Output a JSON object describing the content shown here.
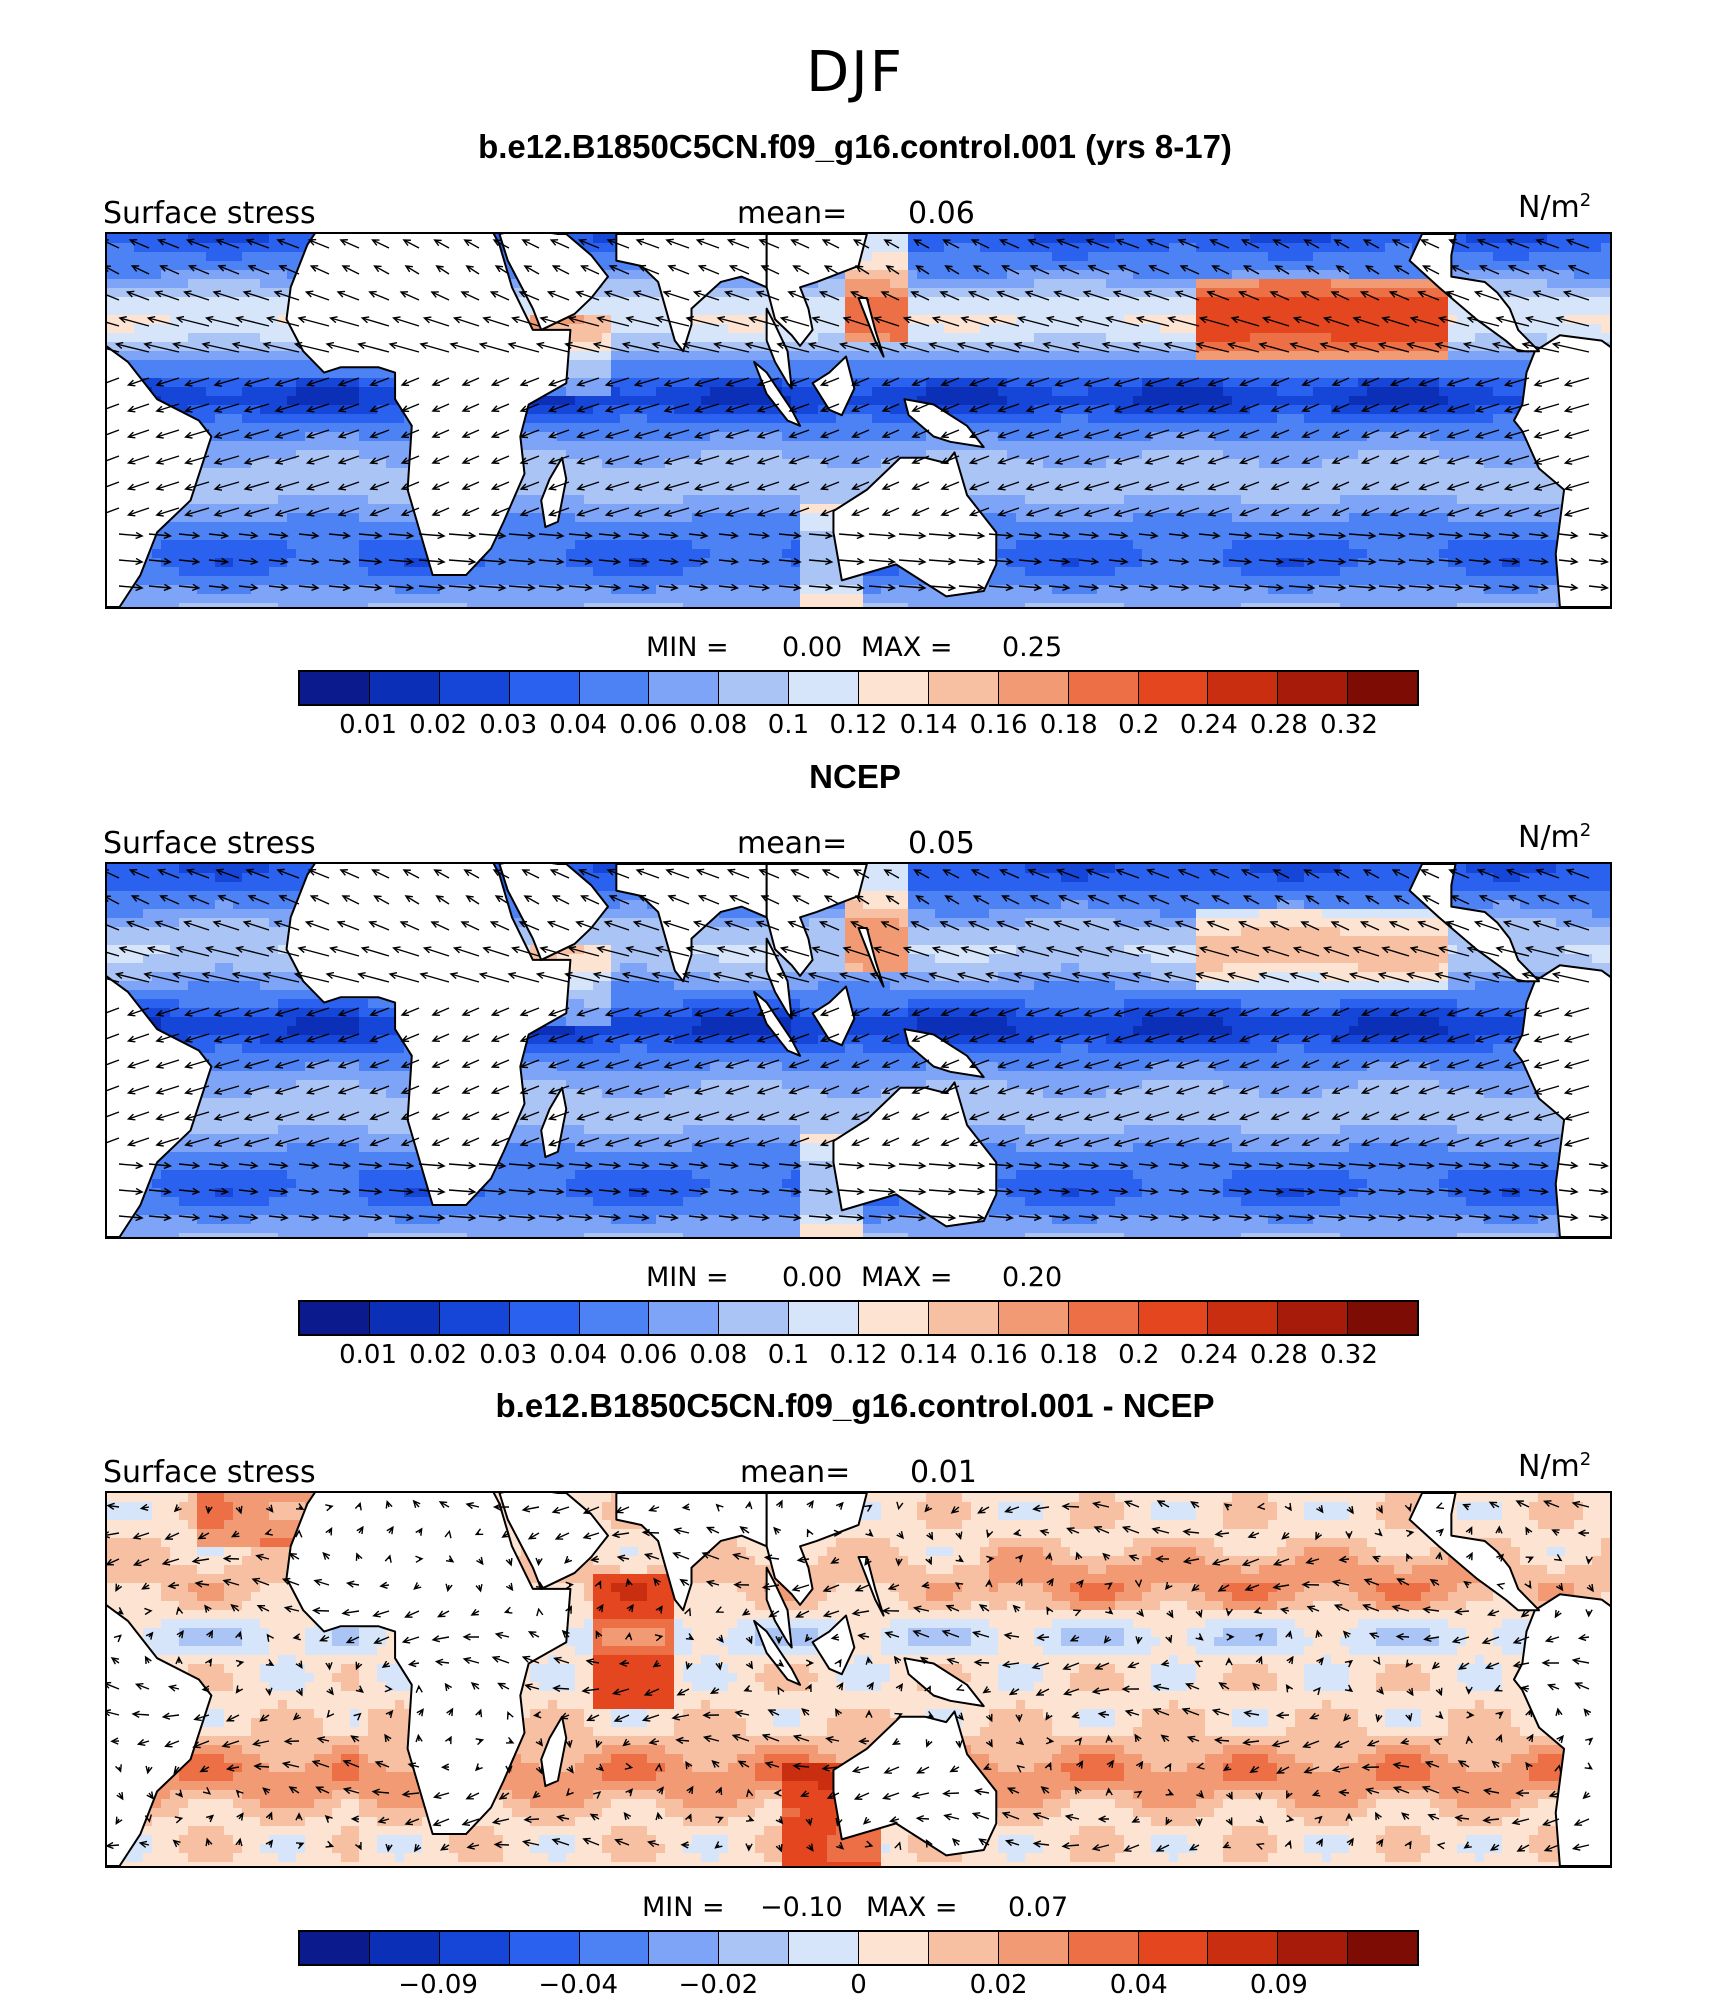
{
  "title": "DJF",
  "palette": [
    "#0b1a8c",
    "#0c2fb8",
    "#1646d8",
    "#2a62ef",
    "#4d82f5",
    "#7ea4f7",
    "#aac4f5",
    "#d6e5fa",
    "#fce3d2",
    "#f7c0a3",
    "#f19a73",
    "#ec6f46",
    "#e4461f",
    "#c92e10",
    "#a61b0a",
    "#7d0c05"
  ],
  "land_color": "#ffffff",
  "panels": [
    {
      "title": "b.e12.B1850C5CN.f09_g16.control.001 (yrs 8-17)",
      "variable": "Surface stress",
      "mean_label": "mean=",
      "mean_value": "0.06",
      "units_base": "N/m",
      "units_exp": "2",
      "min_label": "MIN =",
      "min_value": "0.00",
      "max_label": "MAX =",
      "max_value": "0.25",
      "kind": "abs",
      "colorbar_ticks": [
        "0.01",
        "0.02",
        "0.03",
        "0.04",
        "0.06",
        "0.08",
        "0.1",
        "0.12",
        "0.14",
        "0.16",
        "0.18",
        "0.2",
        "0.24",
        "0.28",
        "0.32"
      ]
    },
    {
      "title": "NCEP",
      "variable": "Surface stress",
      "mean_label": "mean=",
      "mean_value": "0.05",
      "units_base": "N/m",
      "units_exp": "2",
      "min_label": "MIN =",
      "min_value": "0.00",
      "max_label": "MAX =",
      "max_value": "0.20",
      "kind": "abs",
      "colorbar_ticks": [
        "0.01",
        "0.02",
        "0.03",
        "0.04",
        "0.06",
        "0.08",
        "0.1",
        "0.12",
        "0.14",
        "0.16",
        "0.18",
        "0.2",
        "0.24",
        "0.28",
        "0.32"
      ]
    },
    {
      "title": "b.e12.B1850C5CN.f09_g16.control.001 - NCEP",
      "variable": "Surface stress",
      "mean_label": "mean=",
      "mean_value": "0.01",
      "units_base": "N/m",
      "units_exp": "2",
      "min_label": "MIN =",
      "min_value": "−0.10",
      "max_label": "MAX =",
      "max_value": "0.07",
      "kind": "diff",
      "colorbar_ticks": [
        "−0.09",
        "−0.04",
        "−0.02",
        "0",
        "0.02",
        "0.04",
        "0.09"
      ]
    }
  ],
  "chart_data": {
    "type": "heatmap",
    "season": "DJF",
    "variable": "Surface stress",
    "units": "N/m^2",
    "fields": [
      {
        "name": "b.e12.B1850C5CN.f09_g16.control.001 (yrs 8-17)",
        "mean": 0.06,
        "min": 0.0,
        "max": 0.25,
        "levels": [
          0.01,
          0.02,
          0.03,
          0.04,
          0.06,
          0.08,
          0.1,
          0.12,
          0.14,
          0.16,
          0.18,
          0.2,
          0.24,
          0.28,
          0.32
        ]
      },
      {
        "name": "NCEP",
        "mean": 0.05,
        "min": 0.0,
        "max": 0.2,
        "levels": [
          0.01,
          0.02,
          0.03,
          0.04,
          0.06,
          0.08,
          0.1,
          0.12,
          0.14,
          0.16,
          0.18,
          0.2,
          0.24,
          0.28,
          0.32
        ]
      },
      {
        "name": "b.e12.B1850C5CN.f09_g16.control.001 - NCEP",
        "mean": 0.01,
        "min": -0.1,
        "max": 0.07,
        "labeled_levels": [
          -0.09,
          -0.04,
          -0.02,
          0,
          0.02,
          0.04,
          0.09
        ]
      }
    ],
    "overlay": "wind stress vectors"
  }
}
